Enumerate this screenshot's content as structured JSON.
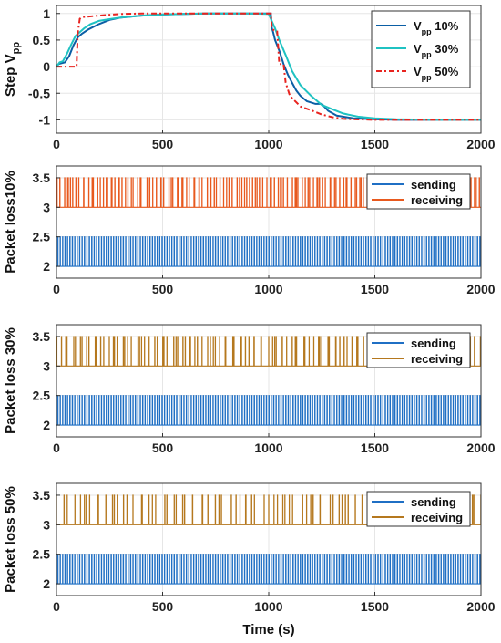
{
  "colors": {
    "v10": "#0b5fa5",
    "v30": "#1fc2c2",
    "v50": "#e8231f",
    "sending": "#1f6fc4",
    "receiving_1": "#e8591e",
    "receiving_2": "#b5781e",
    "grid": "#e6e6e6",
    "axis": "#333333"
  },
  "chart_data": [
    {
      "type": "line",
      "ylabel_main": "Step V",
      "ylabel_sub": "pp",
      "xlim": [
        0,
        2000
      ],
      "ylim": [
        -1.25,
        1.15
      ],
      "xticks": [
        "0",
        "500",
        "1000",
        "1500",
        "2000"
      ],
      "yticks": [
        "1",
        "0.5",
        "0",
        "-0.5",
        "-1"
      ],
      "grid": true,
      "legend_position": "top-right",
      "series": [
        {
          "name_main": "V",
          "name_sub": "pp",
          "name_suffix": " 10%",
          "color_key": "v10",
          "dash": "solid",
          "x": [
            0,
            10,
            40,
            60,
            80,
            100,
            120,
            150,
            200,
            250,
            300,
            400,
            500,
            600,
            700,
            800,
            900,
            1000,
            1010,
            1015,
            1020,
            1030,
            1050,
            1070,
            1090,
            1110,
            1130,
            1150,
            1180,
            1220,
            1250,
            1280,
            1320,
            1400,
            1500,
            1600,
            1800,
            2000
          ],
          "y": [
            0,
            0.05,
            0.08,
            0.2,
            0.4,
            0.55,
            0.62,
            0.7,
            0.8,
            0.88,
            0.92,
            0.96,
            0.98,
            0.99,
            1.0,
            1.0,
            1.0,
            1.0,
            1.0,
            0.72,
            0.66,
            0.5,
            0.3,
            0.05,
            -0.15,
            -0.3,
            -0.45,
            -0.55,
            -0.65,
            -0.7,
            -0.7,
            -0.83,
            -0.92,
            -0.97,
            -0.99,
            -1.0,
            -1.0,
            -1.0
          ]
        },
        {
          "name_main": "V",
          "name_sub": "pp",
          "name_suffix": " 30%",
          "color_key": "v30",
          "dash": "solid",
          "x": [
            0,
            15,
            30,
            50,
            70,
            90,
            110,
            130,
            160,
            200,
            260,
            320,
            400,
            500,
            600,
            700,
            800,
            900,
            1000,
            1010,
            1030,
            1050,
            1080,
            1110,
            1150,
            1200,
            1250,
            1300,
            1350,
            1420,
            1500,
            1600,
            1800,
            2000
          ],
          "y": [
            0,
            0.08,
            0.1,
            0.25,
            0.42,
            0.58,
            0.65,
            0.72,
            0.8,
            0.86,
            0.9,
            0.93,
            0.96,
            0.98,
            0.99,
            1.0,
            1.0,
            1.0,
            0.99,
            0.9,
            0.72,
            0.5,
            0.22,
            -0.08,
            -0.35,
            -0.55,
            -0.72,
            -0.8,
            -0.88,
            -0.94,
            -0.97,
            -0.99,
            -1.0,
            -1.0
          ]
        },
        {
          "name_main": "V",
          "name_sub": "pp",
          "name_suffix": " 50%",
          "color_key": "v50",
          "dash": "6,3,2,3",
          "x": [
            0,
            95,
            100,
            110,
            120,
            200,
            300,
            400,
            500,
            600,
            700,
            800,
            900,
            1000,
            1010,
            1015,
            1030,
            1040,
            1050,
            1070,
            1080,
            1100,
            1150,
            1200,
            1250,
            1300,
            1350,
            1400,
            1500,
            2000
          ],
          "y": [
            0,
            0,
            0.62,
            0.9,
            0.93,
            0.96,
            0.99,
            1.0,
            1.0,
            1.0,
            1.0,
            1.0,
            1.0,
            1.0,
            1.0,
            0.72,
            0.66,
            0.66,
            0.05,
            0.05,
            -0.3,
            -0.55,
            -0.75,
            -0.82,
            -0.9,
            -0.95,
            -0.98,
            -0.99,
            -1.0,
            -1.0
          ]
        }
      ]
    },
    {
      "type": "line",
      "ylabel": "Packet loss10%",
      "xlim": [
        0,
        2000
      ],
      "ylim": [
        1.8,
        3.7
      ],
      "xticks": [
        "0",
        "500",
        "1000",
        "1500",
        "2000"
      ],
      "yticks": [
        "3.5",
        "3",
        "2.5",
        "2"
      ],
      "grid": true,
      "legend_position": "top-right",
      "series": [
        {
          "name": "sending",
          "color_key": "sending",
          "base": 2,
          "high": 2.5,
          "pulses": 175
        },
        {
          "name": "receiving",
          "color_key": "receiving_1",
          "base": 3,
          "high": 3.5,
          "pulses": 155
        }
      ]
    },
    {
      "type": "line",
      "ylabel": "Packet loss 30%",
      "xlim": [
        0,
        2000
      ],
      "ylim": [
        1.8,
        3.7
      ],
      "xticks": [
        "0",
        "500",
        "1000",
        "1500",
        "2000"
      ],
      "yticks": [
        "3.5",
        "3",
        "2.5",
        "2"
      ],
      "grid": true,
      "legend_position": "top-right",
      "series": [
        {
          "name": "sending",
          "color_key": "sending",
          "base": 2,
          "high": 2.5,
          "pulses": 175
        },
        {
          "name": "receiving",
          "color_key": "receiving_2",
          "base": 3,
          "high": 3.5,
          "pulses": 120
        }
      ]
    },
    {
      "type": "line",
      "ylabel": "Packet loss 50%",
      "xlabel": "Time (s)",
      "xlim": [
        0,
        2000
      ],
      "ylim": [
        1.8,
        3.7
      ],
      "xticks": [
        "0",
        "500",
        "1000",
        "1500",
        "2000"
      ],
      "yticks": [
        "3.5",
        "3",
        "2.5",
        "2"
      ],
      "grid": true,
      "legend_position": "top-right",
      "series": [
        {
          "name": "sending",
          "color_key": "sending",
          "base": 2,
          "high": 2.5,
          "pulses": 175
        },
        {
          "name": "receiving",
          "color_key": "receiving_2",
          "base": 3,
          "high": 3.5,
          "pulses": 90
        }
      ]
    }
  ]
}
